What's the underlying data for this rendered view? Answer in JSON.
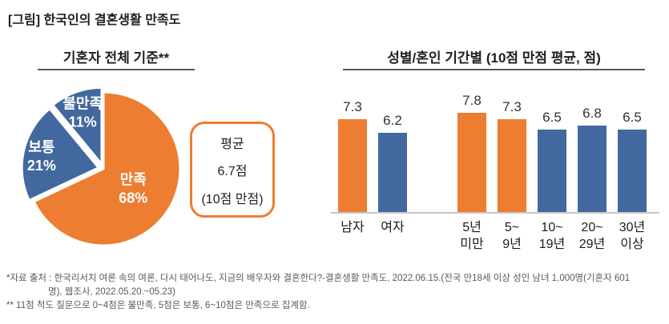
{
  "page": {
    "title": "[그림] 한국인의 결혼생활 만족도"
  },
  "colors": {
    "orange": "#ED7D31",
    "blue": "#42689F",
    "underline": "#595959",
    "baseline": "#C7C7C7",
    "footnote_text": "#595959",
    "pie_label_text": "#FFFFFF"
  },
  "pie_panel": {
    "title": "기혼자 전체 기준**",
    "avg_box": {
      "line1": "평균",
      "line2": "6.7점",
      "line3": "(10점 만점)"
    }
  },
  "bar_panel": {
    "title": "성별/혼인 기간별 (10점 만점 평균, 점)"
  },
  "chart_data": [
    {
      "type": "pie",
      "title": "기혼자 전체 기준**",
      "start_angle_deg": 0,
      "clockwise": true,
      "legend_position": "none",
      "slices": [
        {
          "label": "만족",
          "value": 68,
          "color": "#ED7D31",
          "explode": 0,
          "label_r": 0.46
        },
        {
          "label": "보통",
          "value": 21,
          "color": "#42689F",
          "explode": 6,
          "label_r": 0.76
        },
        {
          "label": "불만족",
          "value": 11,
          "color": "#42689F",
          "explode": 6,
          "label_r": 0.73
        }
      ],
      "annotation": "평균 6.7점 (10점 만점)"
    },
    {
      "type": "bar",
      "title": "성별/혼인 기간별 (10점 만점 평균, 점)",
      "categories": [
        "남자",
        "여자",
        "5년 미만",
        "5~9년",
        "10~19년",
        "20~29년",
        "30년 이상"
      ],
      "display_labels": [
        "남자",
        "여자",
        "5년\n미만",
        "5~\n9년",
        "10~\n19년",
        "20~\n29년",
        "30년\n이상"
      ],
      "values": [
        7.3,
        6.2,
        7.8,
        7.3,
        6.5,
        6.8,
        6.5
      ],
      "bar_colors": [
        "#ED7D31",
        "#42689F",
        "#ED7D31",
        "#ED7D31",
        "#42689F",
        "#42689F",
        "#42689F"
      ],
      "groups": [
        [
          0,
          1
        ],
        [
          2,
          3,
          4,
          5,
          6
        ]
      ],
      "ylim": [
        0,
        10
      ],
      "grid": false,
      "value_labels_shown": true
    }
  ],
  "footnote": {
    "line1": "*자료 출처 : 한국리서치 여론 속의 여론, 다시 태어나도, 지금의 배우자와 결혼한다?-결혼생활 만족도, 2022.06.15.(전국 만18세 이상 성인 남녀 1,000명(기혼자 601",
    "line2": "명), 웹조사, 2022.05.20.~05.23)",
    "line3": "** 11점 척도 질문으로 0~4점은 불만족, 5점은 보통, 6~10점은 만족으로 집계함."
  }
}
